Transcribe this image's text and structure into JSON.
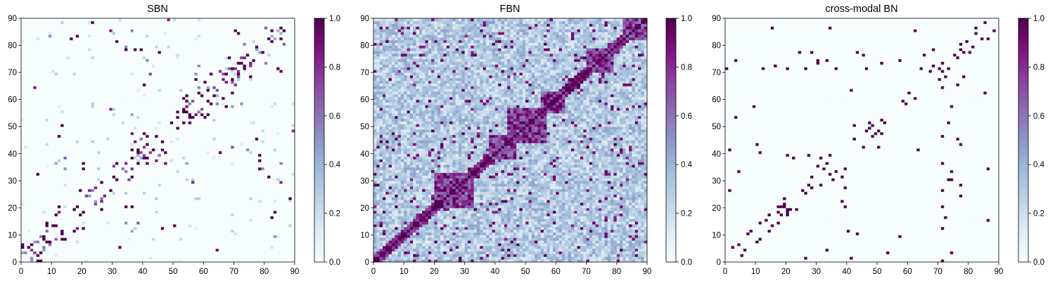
{
  "chart_data": [
    {
      "type": "heatmap",
      "title": "SBN",
      "xlim": [
        0,
        90
      ],
      "ylim": [
        0,
        90
      ],
      "xticks": [
        "0",
        "10",
        "20",
        "30",
        "40",
        "50",
        "60",
        "70",
        "80",
        "90"
      ],
      "yticks": [
        "0",
        "10",
        "20",
        "30",
        "40",
        "50",
        "60",
        "70",
        "80",
        "90"
      ],
      "colorbar": {
        "range": [
          0.0,
          1.0
        ],
        "ticks": [
          "0.0",
          "0.2",
          "0.4",
          "0.6",
          "0.8",
          "1.0"
        ]
      },
      "matrix_size": 90,
      "description_of_values": "sparse symmetric binary-like connectivity; mostly 0 with scattered 1s along near-diagonal and off-diagonal bands"
    },
    {
      "type": "heatmap",
      "title": "FBN",
      "xlim": [
        0,
        90
      ],
      "ylim": [
        0,
        90
      ],
      "xticks": [
        "0",
        "10",
        "20",
        "30",
        "40",
        "50",
        "60",
        "70",
        "80",
        "90"
      ],
      "yticks": [
        "0",
        "10",
        "20",
        "30",
        "40",
        "50",
        "60",
        "70",
        "80",
        "90"
      ],
      "colorbar": {
        "range": [
          0.0,
          1.0
        ],
        "ticks": [
          "0.0",
          "0.2",
          "0.4",
          "0.6",
          "0.8",
          "1.0"
        ]
      },
      "matrix_size": 90,
      "description_of_values": "dense symmetric correlation-like matrix with values 0.1-1.0, strong block structure near diagonal around 20-30, 45-55, 70-80"
    },
    {
      "type": "heatmap",
      "title": "cross-modal BN",
      "xlim": [
        0,
        90
      ],
      "ylim": [
        0,
        90
      ],
      "xticks": [
        "0",
        "10",
        "20",
        "30",
        "40",
        "50",
        "60",
        "70",
        "80",
        "90"
      ],
      "yticks": [
        "0",
        "10",
        "20",
        "30",
        "40",
        "50",
        "60",
        "70",
        "80",
        "90"
      ],
      "colorbar": {
        "range": [
          0.0,
          1.0
        ],
        "ticks": [
          "0.0",
          "0.2",
          "0.4",
          "0.6",
          "0.8",
          "1.0"
        ]
      },
      "matrix_size": 90,
      "description_of_values": "very sparse symmetric matrix, mostly 0 with isolated 1s"
    }
  ],
  "colors": {
    "low": "#f7fcfd",
    "mid": "#8c96c6",
    "high": "#4d004b"
  }
}
